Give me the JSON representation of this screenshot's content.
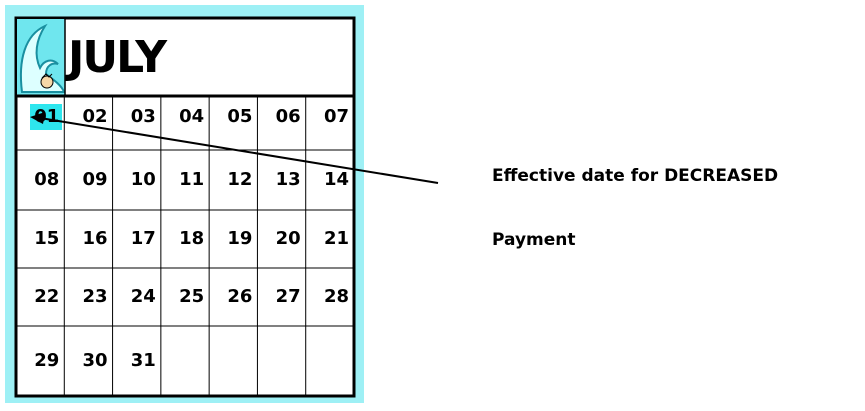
{
  "calendar": {
    "month": "JULY",
    "weeks": [
      [
        "01",
        "02",
        "03",
        "04",
        "05",
        "06",
        "07"
      ],
      [
        "08",
        "09",
        "10",
        "11",
        "12",
        "13",
        "14"
      ],
      [
        "15",
        "16",
        "17",
        "18",
        "19",
        "20",
        "21"
      ],
      [
        "22",
        "23",
        "24",
        "25",
        "26",
        "27",
        "28"
      ],
      [
        "29",
        "30",
        "31"
      ]
    ]
  },
  "annotation": {
    "lines": [
      "Effective date for DECREASED",
      "Payment"
    ]
  }
}
